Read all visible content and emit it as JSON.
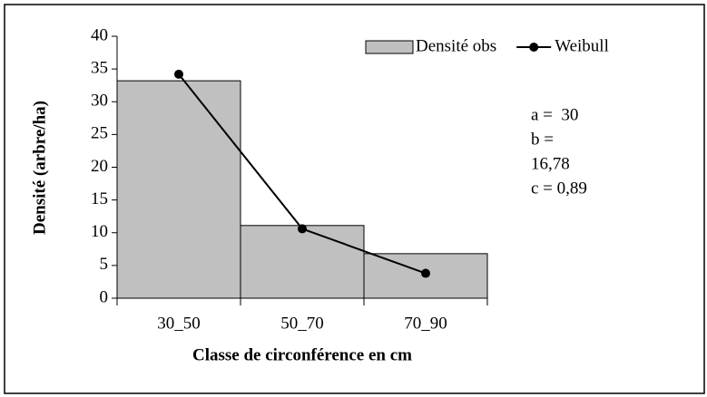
{
  "chart_data": {
    "type": "bar",
    "categories": [
      "30_50",
      "50_70",
      "70_90"
    ],
    "series": [
      {
        "name": "Densité obs",
        "type": "bar",
        "color": "#c0c0c0",
        "values": [
          33.2,
          11.1,
          6.8
        ]
      },
      {
        "name": "Weibull",
        "type": "line",
        "color": "#000000",
        "values": [
          34.2,
          10.6,
          3.8
        ]
      }
    ],
    "ylim": [
      0,
      40
    ],
    "yticks": [
      0,
      5,
      10,
      15,
      20,
      25,
      30,
      35,
      40
    ],
    "xlabel": "Classe de circonférence en cm",
    "ylabel": "Densité (arbre/ha)",
    "annotations": [
      "a =  30",
      "b =",
      "16,78",
      "c = 0,89"
    ],
    "legend": "top-right"
  }
}
